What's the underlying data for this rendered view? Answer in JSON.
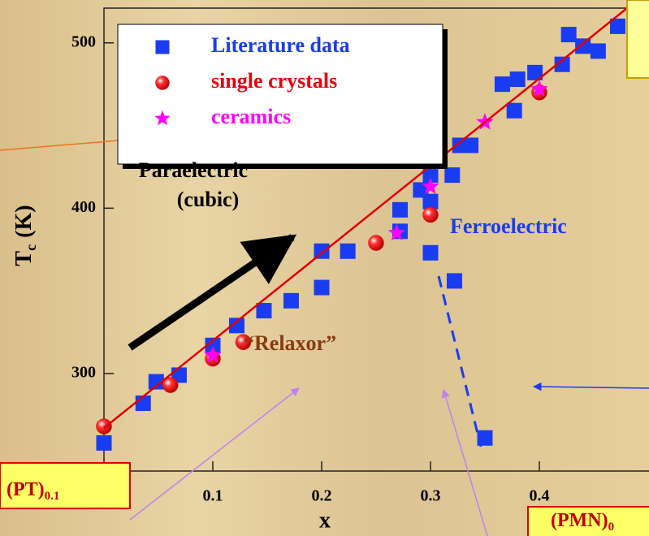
{
  "chart_data": {
    "type": "scatter",
    "x_label": "x",
    "y_label": {
      "main": "T",
      "sub": "c",
      "unit": "(K)"
    },
    "xlim": [
      0,
      0.5
    ],
    "ylim": [
      241,
      521
    ],
    "xticks": [
      0.1,
      0.2,
      0.3,
      0.4
    ],
    "yticks": [
      300,
      400,
      500
    ],
    "legend": "upper left",
    "series": [
      {
        "name": "Literature data",
        "color": "#1a3cf0",
        "marker": "square",
        "x": [
          0.0,
          0.036,
          0.048,
          0.069,
          0.1,
          0.122,
          0.147,
          0.172,
          0.2,
          0.2,
          0.224,
          0.272,
          0.272,
          0.291,
          0.3,
          0.3,
          0.3,
          0.32,
          0.322,
          0.327,
          0.337,
          0.35,
          0.366,
          0.38,
          0.377,
          0.396,
          0.421,
          0.427,
          0.44,
          0.454,
          0.472
        ],
        "values": [
          258,
          282,
          295,
          299,
          317,
          329,
          338,
          344,
          352,
          374,
          374,
          386,
          399,
          411,
          404,
          420,
          373,
          420,
          356,
          438,
          438,
          261,
          475,
          478,
          459,
          482,
          487,
          505,
          498,
          495,
          510
        ]
      },
      {
        "name": "single crystals",
        "color": "#e8000b",
        "marker": "circle",
        "x": [
          0.0,
          0.061,
          0.1,
          0.128,
          0.25,
          0.3,
          0.4
        ],
        "values": [
          268,
          293,
          309,
          319,
          379,
          396,
          470
        ]
      },
      {
        "name": "ceramics",
        "color": "#ff00ff",
        "marker": "star",
        "x": [
          0.1,
          0.269,
          0.3,
          0.35,
          0.4
        ],
        "values": [
          311,
          385,
          413,
          452,
          472
        ]
      }
    ],
    "annotations": {
      "paraelectric": [
        "Paraelectric",
        "(cubic)"
      ],
      "ferroelectric": "Ferroelectric",
      "relaxor": "“Relaxor”"
    },
    "boxes": {
      "pt": {
        "main": "(PT)",
        "sub": "0.1"
      },
      "pmn": {
        "main": "(PMN)",
        "sub": "0"
      }
    }
  }
}
